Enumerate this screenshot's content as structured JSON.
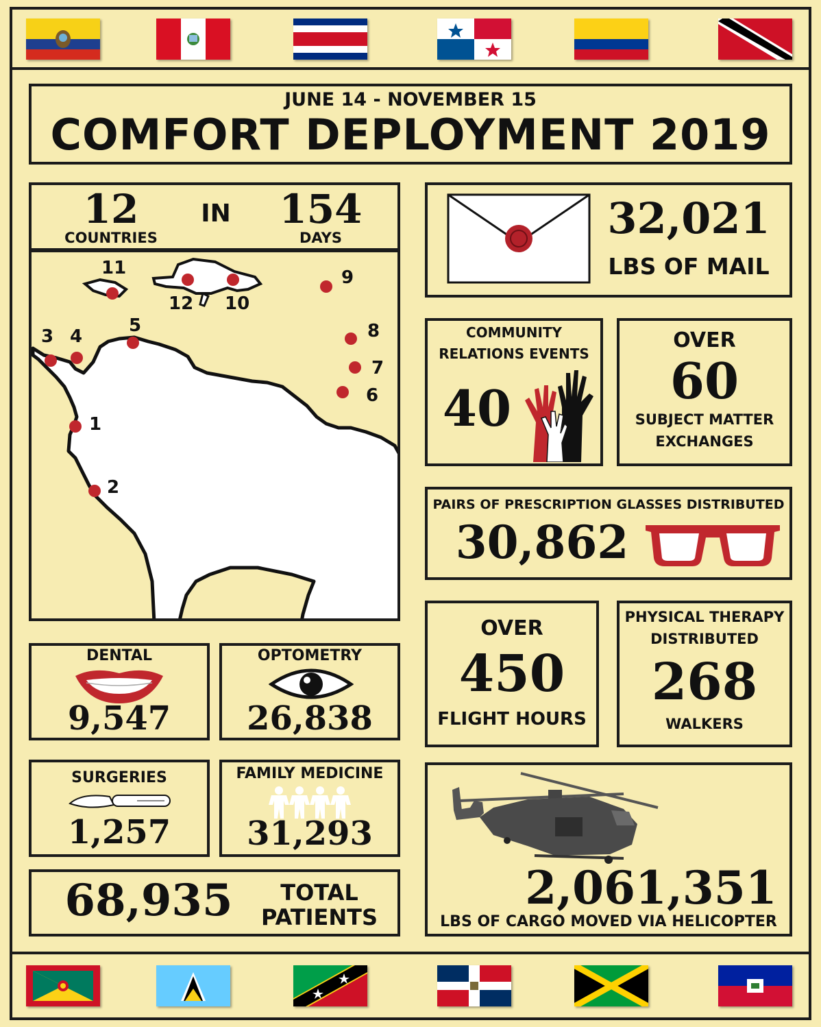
{
  "header": {
    "dates": "JUNE 14 - NOVEMBER 15",
    "title": "COMFORT DEPLOYMENT 2019"
  },
  "colors": {
    "background": "#f7ecb2",
    "border": "#1b1b1b",
    "accent_red": "#c0272d"
  },
  "flags_top": [
    "ecuador-flag",
    "peru-flag",
    "costa-rica-flag",
    "panama-flag",
    "colombia-flag",
    "trinidad-and-tobago-flag"
  ],
  "flags_bottom": [
    "grenada-flag",
    "saint-lucia-flag",
    "saint-kitts-and-nevis-flag",
    "dominican-republic-flag",
    "jamaica-flag",
    "haiti-flag"
  ],
  "summary": {
    "countries_value": "12",
    "countries_label": "COUNTRIES",
    "connector": "IN",
    "days_value": "154",
    "days_label": "DAYS"
  },
  "map": {
    "stops": [
      "1",
      "2",
      "3",
      "4",
      "5",
      "6",
      "7",
      "8",
      "9",
      "10",
      "11",
      "12"
    ]
  },
  "mail": {
    "value": "32,021",
    "label": "LBS OF MAIL",
    "icon": "envelope-icon"
  },
  "community": {
    "label_line1": "COMMUNITY",
    "label_line2": "RELATIONS EVENTS",
    "value": "40",
    "icon": "raised-hands-icon"
  },
  "sme": {
    "prefix": "OVER",
    "value": "60",
    "label_line1": "SUBJECT MATTER",
    "label_line2": "EXCHANGES"
  },
  "glasses": {
    "label": "PAIRS OF PRESCRIPTION GLASSES DISTRIBUTED",
    "value": "30,862",
    "icon": "glasses-icon"
  },
  "flight": {
    "prefix": "OVER",
    "value": "450",
    "label": "FLIGHT HOURS"
  },
  "therapy": {
    "label_line1": "PHYSICAL THERAPY",
    "label_line2": "DISTRIBUTED",
    "value": "268",
    "label": "WALKERS"
  },
  "dental": {
    "label": "DENTAL",
    "value": "9,547",
    "icon": "smile-icon"
  },
  "optometry": {
    "label": "OPTOMETRY",
    "value": "26,838",
    "icon": "eye-icon"
  },
  "surgeries": {
    "label": "SURGERIES",
    "value": "1,257",
    "icon": "scalpel-icon"
  },
  "family": {
    "label": "FAMILY MEDICINE",
    "value": "31,293",
    "icon": "paper-people-icon"
  },
  "patients": {
    "value": "68,935",
    "label_line1": "TOTAL",
    "label_line2": "PATIENTS"
  },
  "cargo": {
    "value": "2,061,351",
    "label": "LBS OF CARGO MOVED VIA HELICOPTER",
    "icon": "helicopter-icon"
  }
}
